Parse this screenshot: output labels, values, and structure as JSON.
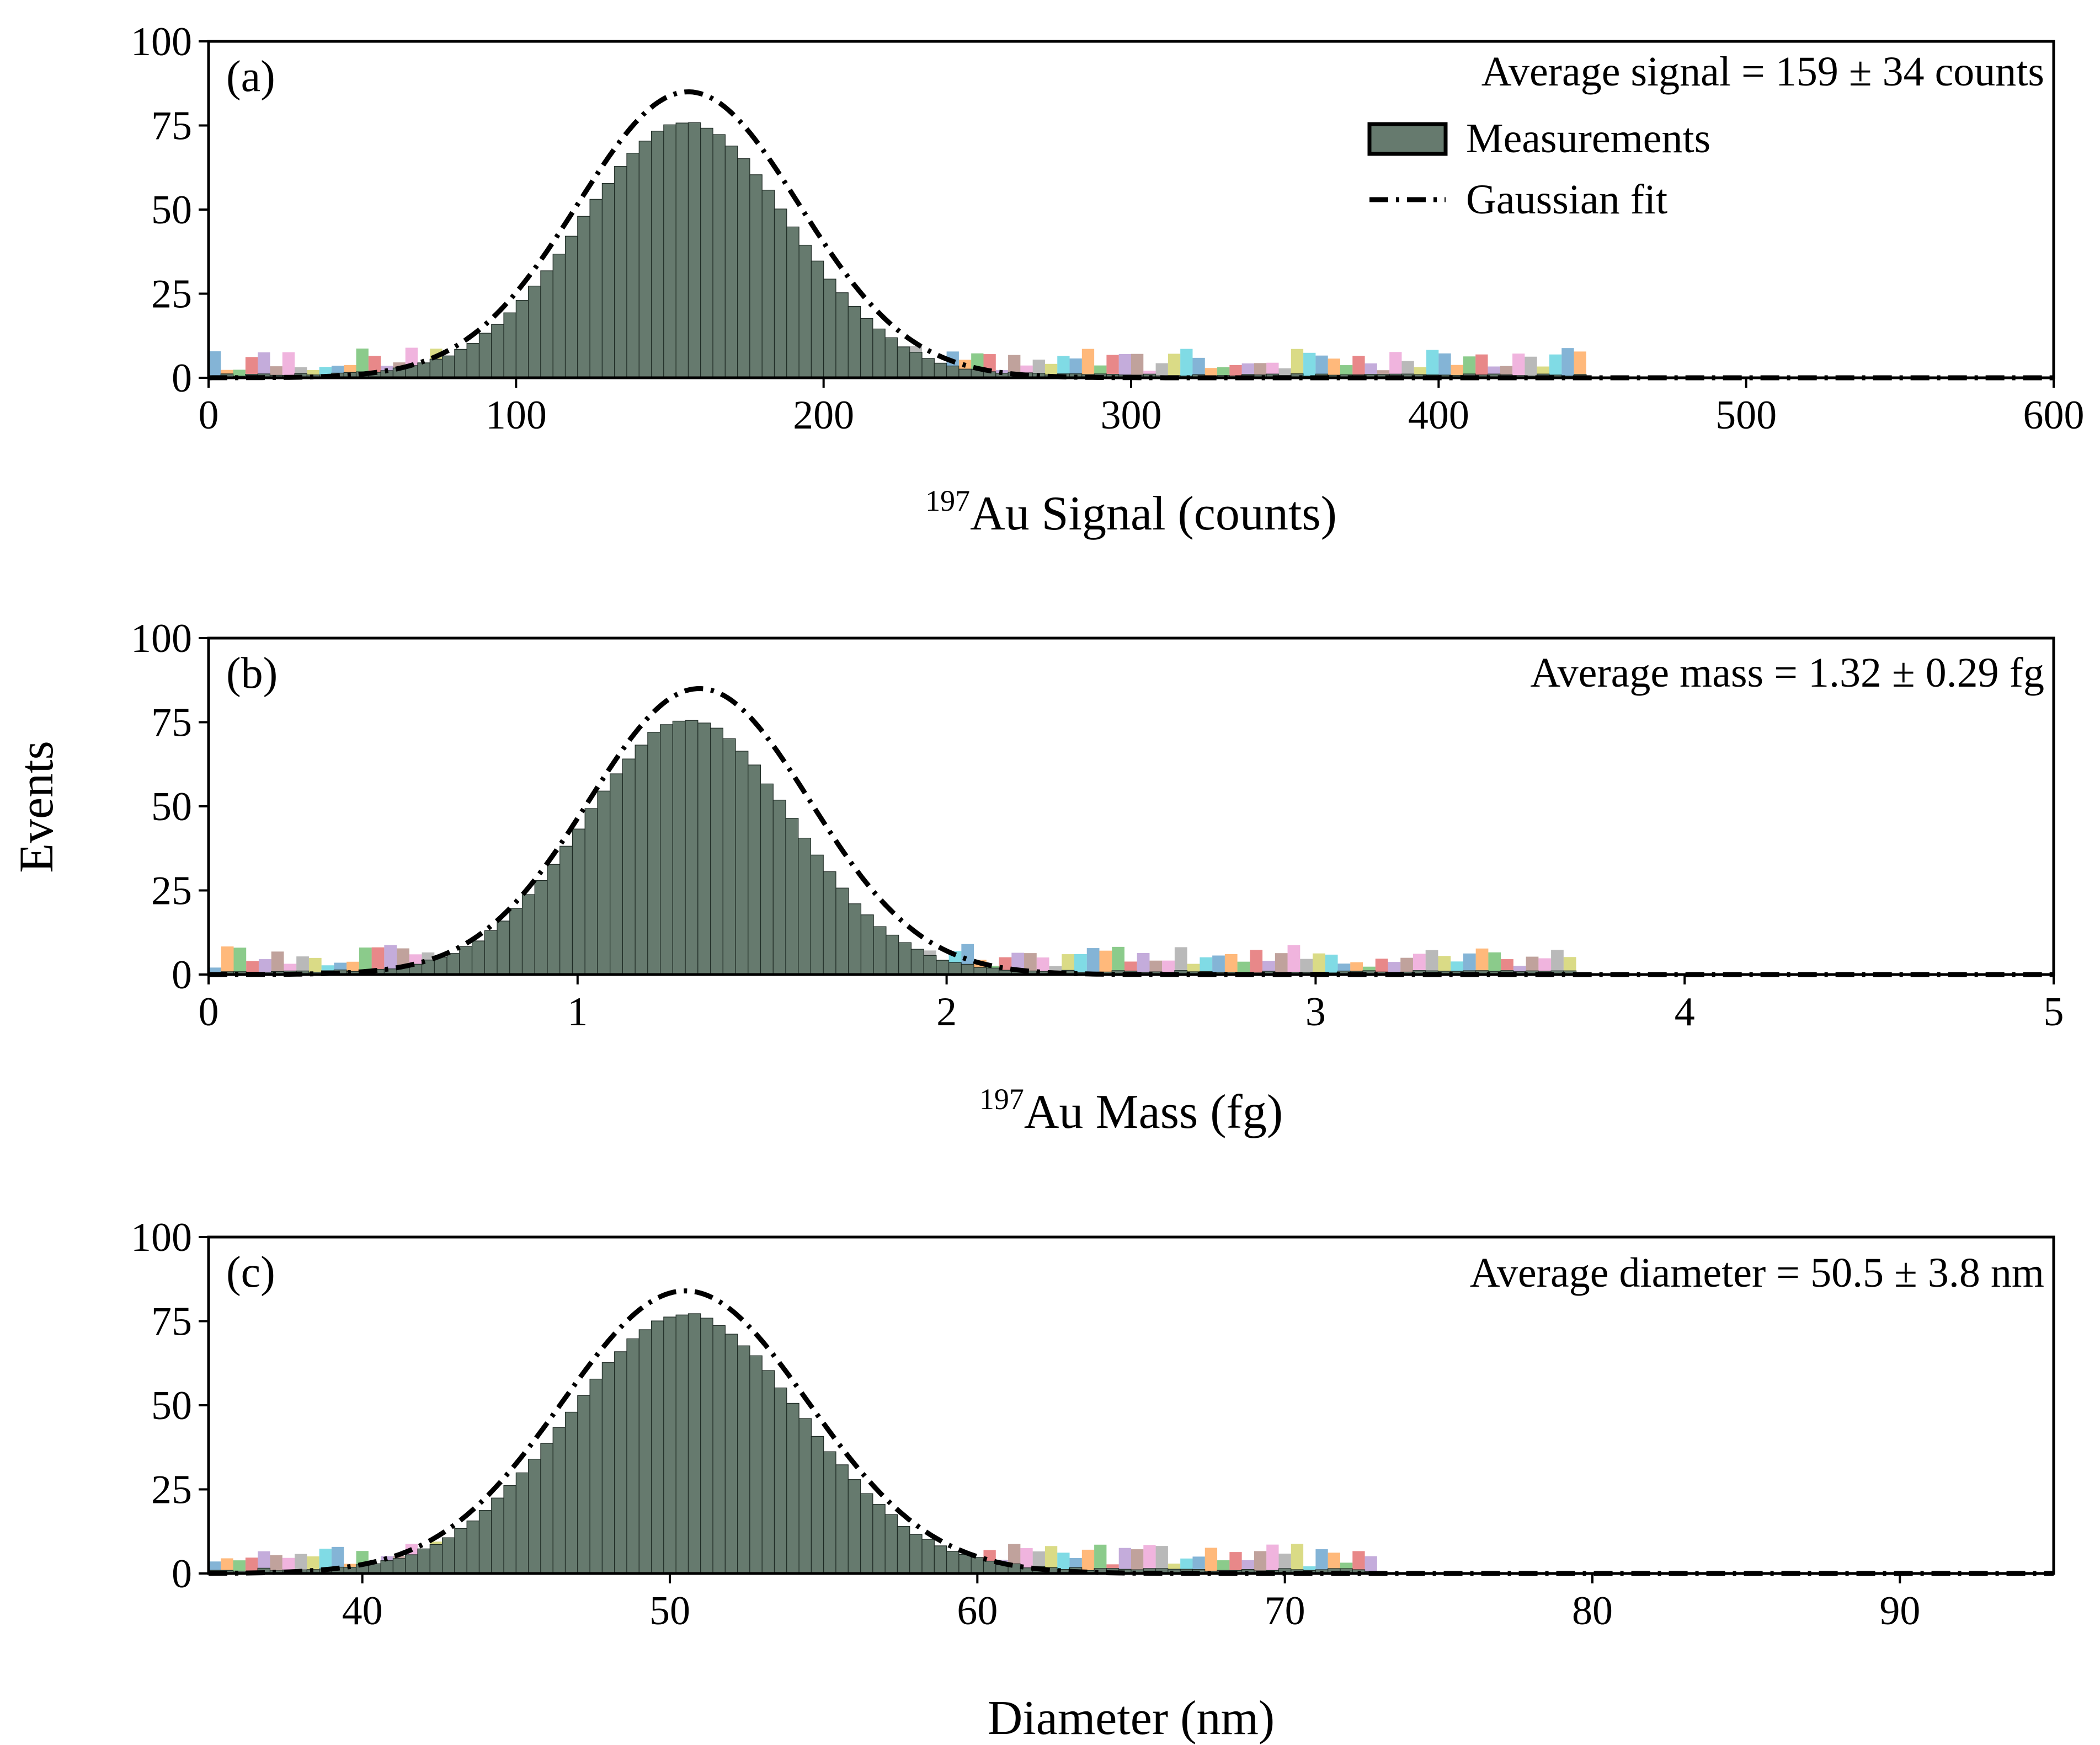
{
  "colors": {
    "measurements": "#667a6e",
    "edge": "#1e2a24",
    "fit": "#000000",
    "overlay_palette": [
      "#1f77b4",
      "#ff7f0e",
      "#2ca02c",
      "#d62728",
      "#9467bd",
      "#8c564b",
      "#e377c2",
      "#7f7f7f",
      "#bcbd22",
      "#17becf"
    ]
  },
  "figure": {
    "ylabel": "Events",
    "legend": {
      "measurements": "Measurements",
      "fit": "Gaussian fit"
    }
  },
  "chart_data": [
    {
      "type": "bar",
      "panel_label": "(a)",
      "title": "",
      "xlabel": "Au Signal (counts)",
      "xlabel_sup": "197",
      "ylabel": "Events",
      "annotation": "Average signal = 159 ± 34 counts",
      "xlim": [
        0,
        600
      ],
      "ylim": [
        0,
        100
      ],
      "xticks": [
        0,
        100,
        200,
        300,
        400,
        500,
        600
      ],
      "yticks": [
        0,
        25,
        50,
        75,
        100
      ],
      "histogram": {
        "x_start": 0,
        "bin_width": 4,
        "mean": 155,
        "sd": 34,
        "peak": 75,
        "tail_to": 450,
        "tail_level": 1.2
      },
      "gaussian_fit": {
        "mean": 156,
        "sd": 36,
        "amplitude": 85
      },
      "legend": [
        "Measurements",
        "Gaussian fit"
      ]
    },
    {
      "type": "bar",
      "panel_label": "(b)",
      "title": "",
      "xlabel": "Au Mass (fg)",
      "xlabel_sup": "197",
      "ylabel": "Events",
      "annotation": "Average mass = 1.32 ± 0.29 fg",
      "xlim": [
        0,
        5
      ],
      "ylim": [
        0,
        100
      ],
      "xticks": [
        0,
        1,
        2,
        3,
        4,
        5
      ],
      "yticks": [
        0,
        25,
        50,
        75,
        100
      ],
      "histogram": {
        "x_start": 0,
        "bin_width": 0.034,
        "mean": 1.3,
        "sd": 0.28,
        "peak": 75,
        "tail_to": 3.7,
        "tail_level": 1.2
      },
      "gaussian_fit": {
        "mean": 1.33,
        "sd": 0.3,
        "amplitude": 85
      },
      "legend": []
    },
    {
      "type": "bar",
      "panel_label": "(c)",
      "title": "",
      "xlabel": "Diameter (nm)",
      "xlabel_sup": "",
      "ylabel": "Events",
      "annotation": "Average diameter = 50.5 ± 3.8 nm",
      "xlim": [
        35,
        95
      ],
      "ylim": [
        0,
        100
      ],
      "xticks": [
        40,
        50,
        60,
        70,
        80,
        90
      ],
      "yticks": [
        0,
        25,
        50,
        75,
        100
      ],
      "histogram": {
        "x_start": 35,
        "bin_width": 0.4,
        "mean": 50.5,
        "sd": 3.8,
        "peak": 76,
        "tail_to": 73,
        "tail_level": 1.5
      },
      "gaussian_fit": {
        "mean": 50.5,
        "sd": 4.0,
        "amplitude": 84
      },
      "legend": []
    }
  ]
}
